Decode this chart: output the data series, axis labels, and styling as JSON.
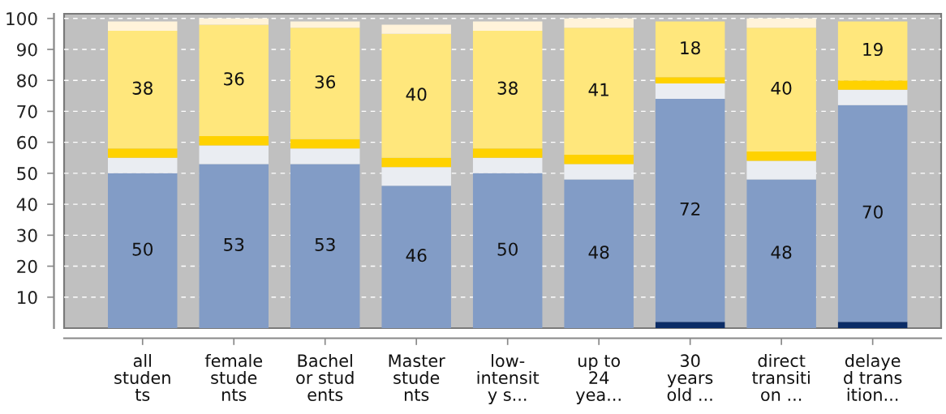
{
  "chart_data": {
    "type": "bar",
    "stacked": true,
    "categories": [
      "all\nstuden\nts",
      "female\nstude\nnts",
      "Bachel\nor stud\nents",
      "Master\nstude\nnts",
      "low-\nintensit\ny s...",
      "up to\n24\nyea...",
      "30\nyears\nold ...",
      "direct\ntransiti\non ...",
      "delaye\nd trans\nition..."
    ],
    "ylim": [
      0,
      101.5
    ],
    "yticks": [
      10,
      20,
      30,
      40,
      50,
      60,
      70,
      80,
      90,
      100
    ],
    "grid": "y",
    "series": [
      {
        "color": "#0b2c66",
        "values": [
          null,
          null,
          null,
          null,
          null,
          null,
          2,
          null,
          2
        ]
      },
      {
        "color": "#829cc6",
        "values": [
          50,
          53,
          53,
          46,
          50,
          48,
          72,
          48,
          70
        ],
        "value_labels": [
          "50",
          "53",
          "53",
          "46",
          "50",
          "48",
          "72",
          "48",
          "70"
        ]
      },
      {
        "color": "#eaedf2",
        "values": [
          5,
          6,
          5,
          6,
          5,
          5,
          5,
          6,
          5
        ]
      },
      {
        "color": "#ffd200",
        "values": [
          3,
          3,
          3,
          3,
          3,
          3,
          2,
          3,
          3
        ]
      },
      {
        "color": "#ffe77c",
        "values": [
          38,
          36,
          36,
          40,
          38,
          41,
          18,
          40,
          19
        ],
        "value_labels": [
          "38",
          "36",
          "36",
          "40",
          "38",
          "41",
          "18",
          "40",
          "19"
        ]
      },
      {
        "color": "#fff3da",
        "values": [
          3,
          2,
          2,
          3,
          3,
          3,
          null,
          3,
          null
        ]
      }
    ]
  }
}
